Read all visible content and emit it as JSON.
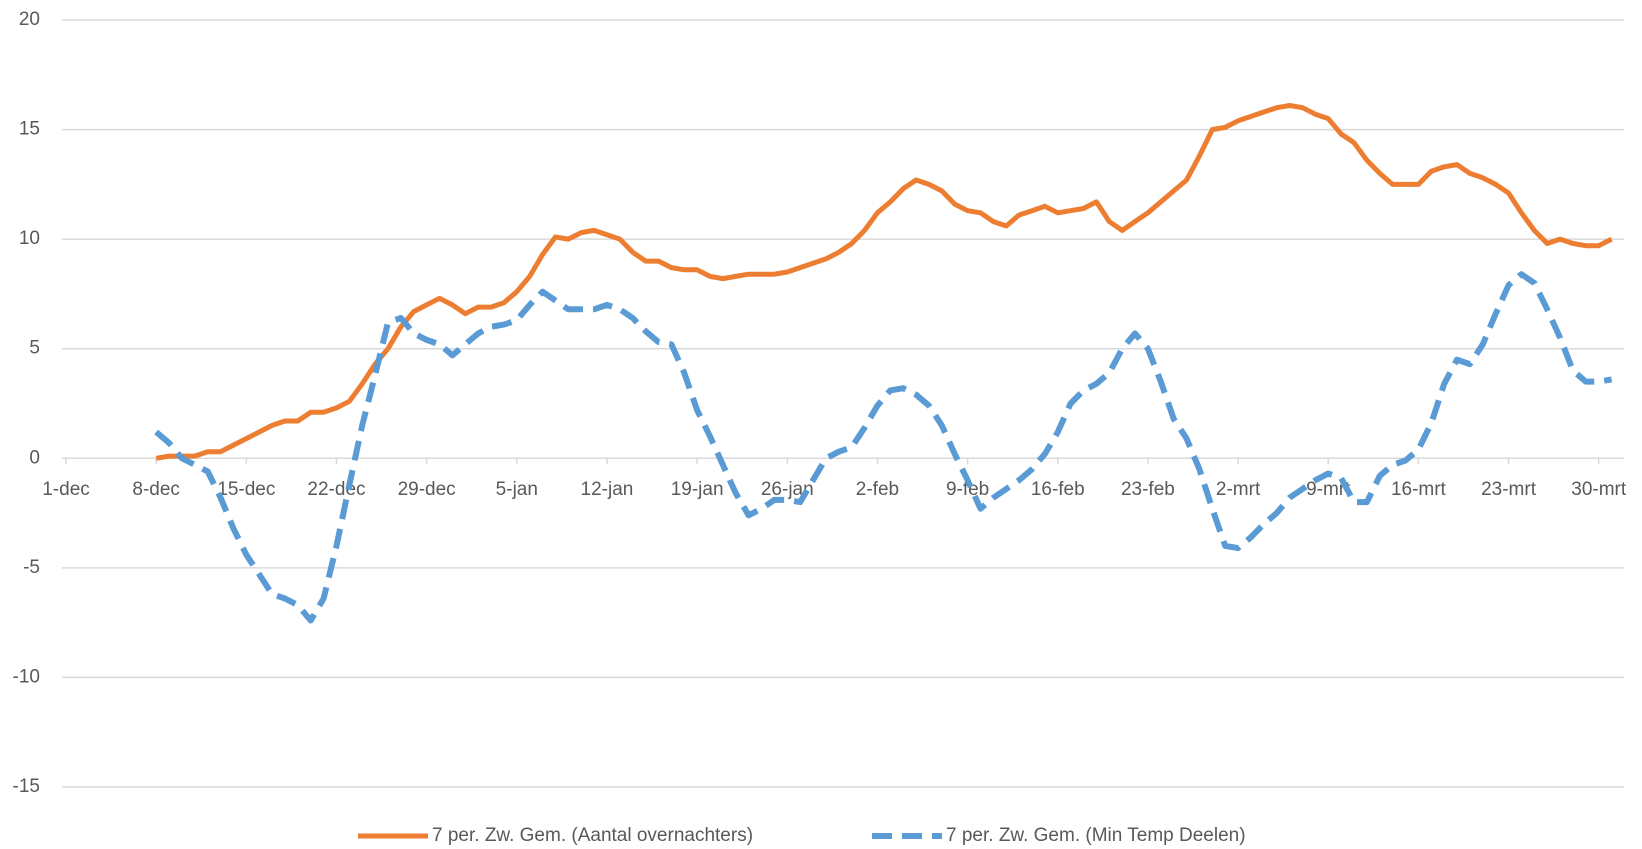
{
  "chart_data": {
    "type": "line",
    "categories": [
      "1-dec",
      null,
      null,
      null,
      null,
      null,
      null,
      "8-dec",
      null,
      null,
      null,
      null,
      null,
      null,
      "15-dec",
      null,
      null,
      null,
      null,
      null,
      null,
      "22-dec",
      null,
      null,
      null,
      null,
      null,
      null,
      "29-dec",
      null,
      null,
      null,
      null,
      null,
      null,
      "5-jan",
      null,
      null,
      null,
      null,
      null,
      null,
      "12-jan",
      null,
      null,
      null,
      null,
      null,
      null,
      "19-jan",
      null,
      null,
      null,
      null,
      null,
      null,
      "26-jan",
      null,
      null,
      null,
      null,
      null,
      null,
      "2-feb",
      null,
      null,
      null,
      null,
      null,
      null,
      "9-feb",
      null,
      null,
      null,
      null,
      null,
      null,
      "16-feb",
      null,
      null,
      null,
      null,
      null,
      null,
      "23-feb",
      null,
      null,
      null,
      null,
      null,
      null,
      "2-mrt",
      null,
      null,
      null,
      null,
      null,
      null,
      "9-mrt",
      null,
      null,
      null,
      null,
      null,
      null,
      "16-mrt",
      null,
      null,
      null,
      null,
      null,
      null,
      "23-mrt",
      null,
      null,
      null,
      null,
      null,
      null,
      "30-mrt",
      null
    ],
    "series": [
      {
        "name": "7 per. Zw. Gem. (Aantal overnachters)",
        "color": "#ed7d31",
        "dashed": false,
        "values": [
          null,
          null,
          null,
          null,
          null,
          null,
          null,
          0,
          0.1,
          0.1,
          0.1,
          0.3,
          0.3,
          0.6,
          0.9,
          1.2,
          1.5,
          1.7,
          1.7,
          2.1,
          2.1,
          2.3,
          2.6,
          3.4,
          4.3,
          5.0,
          6.0,
          6.7,
          7.0,
          7.3,
          7.0,
          6.6,
          6.9,
          6.9,
          7.1,
          7.6,
          8.3,
          9.3,
          10.1,
          10.0,
          10.3,
          10.4,
          10.2,
          10.0,
          9.4,
          9.0,
          9.0,
          8.7,
          8.6,
          8.6,
          8.3,
          8.2,
          8.3,
          8.4,
          8.4,
          8.4,
          8.5,
          8.7,
          8.9,
          9.1,
          9.4,
          9.8,
          10.4,
          11.2,
          11.7,
          12.3,
          12.7,
          12.5,
          12.2,
          11.6,
          11.3,
          11.2,
          10.8,
          10.6,
          11.1,
          11.3,
          11.5,
          11.2,
          11.3,
          11.4,
          11.7,
          10.8,
          10.4,
          10.8,
          11.2,
          11.7,
          12.2,
          12.7,
          13.8,
          15.0,
          15.1,
          15.4,
          15.6,
          15.8,
          16.0,
          16.1,
          16.0,
          15.7,
          15.5,
          14.8,
          14.4,
          13.6,
          13.0,
          12.5,
          12.5,
          12.5,
          13.1,
          13.3,
          13.4,
          13.0,
          12.8,
          12.5,
          12.1,
          11.2,
          10.4,
          9.8,
          10.0,
          9.8,
          9.7,
          9.7,
          10.0
        ]
      },
      {
        "name": "7 per. Zw. Gem. (Min Temp Deelen)",
        "color": "#5b9bd5",
        "dashed": true,
        "values": [
          null,
          null,
          null,
          null,
          null,
          null,
          null,
          1.2,
          0.7,
          0,
          -0.3,
          -0.6,
          -1.8,
          -3.2,
          -4.4,
          -5.3,
          -6.2,
          -6.4,
          -6.7,
          -7.4,
          -6.4,
          -4.0,
          -1.2,
          1.5,
          3.8,
          6.2,
          6.4,
          5.7,
          5.4,
          5.2,
          4.7,
          5.2,
          5.7,
          6.0,
          6.1,
          6.3,
          7.0,
          7.6,
          7.2,
          6.8,
          6.8,
          6.8,
          7.0,
          6.8,
          6.4,
          5.8,
          5.3,
          5.2,
          3.9,
          2.2,
          1.0,
          -0.3,
          -1.6,
          -2.6,
          -2.3,
          -1.9,
          -1.9,
          -2.0,
          -1.0,
          0,
          0.3,
          0.5,
          1.4,
          2.4,
          3.1,
          3.2,
          2.9,
          2.4,
          1.5,
          0.2,
          -1.0,
          -2.3,
          -1.8,
          -1.4,
          -1.0,
          -0.5,
          0.2,
          1.2,
          2.5,
          3.1,
          3.4,
          3.9,
          5.0,
          5.7,
          5.0,
          3.5,
          1.8,
          0.9,
          -0.5,
          -2.3,
          -4.0,
          -4.1,
          -3.6,
          -3.0,
          -2.5,
          -1.8,
          -1.4,
          -1.0,
          -0.7,
          -0.9,
          -2.0,
          -2.0,
          -0.8,
          -0.3,
          -0.1,
          0.4,
          1.6,
          3.4,
          4.5,
          4.3,
          5.2,
          6.6,
          7.9,
          8.4,
          8.0,
          6.8,
          5.5,
          4.0,
          3.5,
          3.5,
          3.6
        ]
      }
    ],
    "ylim": [
      -15,
      20
    ],
    "yticks": [
      20,
      15,
      10,
      5,
      0,
      -5,
      -10,
      -15
    ],
    "grid": true,
    "legend": "bottom"
  }
}
